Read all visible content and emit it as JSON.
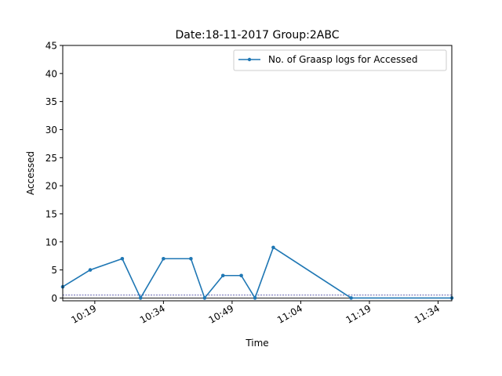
{
  "chart_data": {
    "type": "line",
    "title": "Date:18-11-2017  Group:2ABC",
    "xlabel": "Time",
    "ylabel": "Accessed",
    "date": "2017-11-18",
    "xlim": [
      "10:12",
      "11:37"
    ],
    "ylim": [
      -0.5,
      45
    ],
    "y_ticks": [
      0,
      5,
      10,
      15,
      20,
      25,
      30,
      35,
      40,
      45
    ],
    "x_ticks": [
      "10:19",
      "10:34",
      "10:49",
      "11:04",
      "11:19",
      "11:34"
    ],
    "grid": false,
    "legend_position": "top-right",
    "series": [
      {
        "name": "No. of Graasp logs for Accessed",
        "color": "#1f77b4",
        "marker": "point",
        "points": [
          {
            "x": "10:12",
            "y": 2
          },
          {
            "x": "10:18",
            "y": 5
          },
          {
            "x": "10:25",
            "y": 7
          },
          {
            "x": "10:29",
            "y": 0
          },
          {
            "x": "10:34",
            "y": 7
          },
          {
            "x": "10:40",
            "y": 7
          },
          {
            "x": "10:43",
            "y": 0
          },
          {
            "x": "10:47",
            "y": 4
          },
          {
            "x": "10:51",
            "y": 4
          },
          {
            "x": "10:54",
            "y": 0
          },
          {
            "x": "10:58",
            "y": 9
          },
          {
            "x": "11:15",
            "y": 0
          },
          {
            "x": "11:37",
            "y": 0
          }
        ]
      }
    ],
    "reference_lines": [
      {
        "y": 0,
        "color": "#000000",
        "style": "solid"
      },
      {
        "y": 0.5,
        "color": "#000080",
        "style": "dashed"
      }
    ]
  }
}
